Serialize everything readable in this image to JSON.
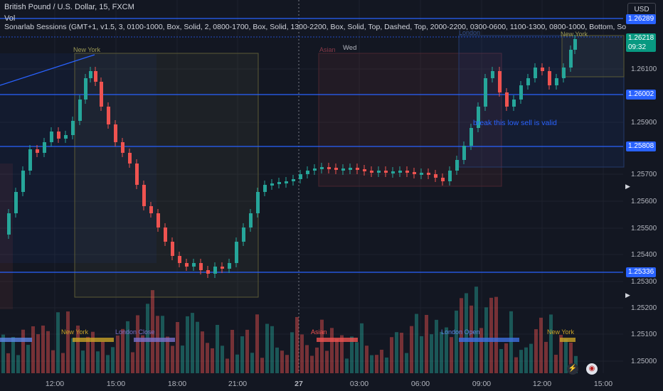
{
  "header": {
    "title": "British Pound / U.S. Dollar, 15, FXCM",
    "volume_label": "Vol",
    "indicator": "Sonarlab Sessions (GMT+1, v1.5, 3, 0100-1000, Box, Solid, 2, 0800-1700, Box, Solid, 1300-2200, Box, Solid, Top, Dashed, Top, 2000-2200, 0300-0600, 1100-1300, 0800-1000, Bottom, So",
    "currency": "USD"
  },
  "price_axis": {
    "ticks": [
      "1.26100",
      "1.25900",
      "1.25700",
      "1.25600",
      "1.25500",
      "1.25400",
      "1.25300",
      "1.25200",
      "1.25100",
      "1.25000"
    ],
    "labels": [
      {
        "text": "1.26289",
        "color": "#2962ff"
      },
      {
        "text": "1.26218",
        "color": "#089981",
        "sub": "09:32"
      },
      {
        "text": "1.26002",
        "color": "#2962ff"
      },
      {
        "text": "1.25808",
        "color": "#2962ff"
      },
      {
        "text": "1.25336",
        "color": "#2962ff"
      }
    ]
  },
  "time_axis": {
    "ticks": [
      "12:00",
      "15:00",
      "18:00",
      "21:00",
      "27",
      "03:00",
      "06:00",
      "09:00",
      "12:00",
      "15:00"
    ]
  },
  "sessions": {
    "top": [
      "New York",
      "Asian",
      "London",
      "New York"
    ],
    "bottom": [
      "New York",
      "London Close",
      "Asian",
      "London Open",
      "New York"
    ]
  },
  "annotation": "break this low sell is valid",
  "day_label": "Wed",
  "colors": {
    "bull": "#26a69a",
    "bear": "#ef5350",
    "level": "#2962ff",
    "background": "#131722"
  }
}
